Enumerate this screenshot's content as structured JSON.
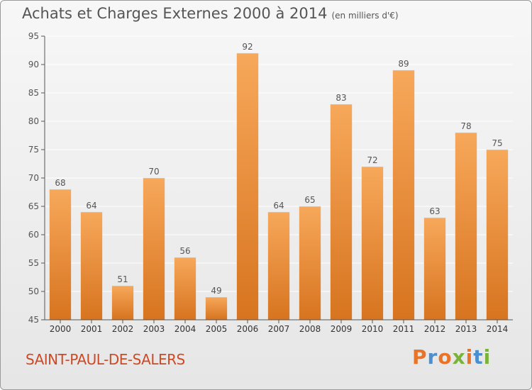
{
  "header": {
    "title": "Achats et Charges Externes 2000 à 2014",
    "subtitle": "(en milliers d'€)"
  },
  "footer": {
    "place": "SAINT-PAUL-DE-SALERS",
    "logo": "Proxiti",
    "logo_colors": [
      "#e8742a",
      "#4a8fd0",
      "#e8742a",
      "#7ab33a",
      "#e8742a",
      "#4a8fd0",
      "#7ab33a"
    ]
  },
  "colors": {
    "bar_light": "#f7a85a",
    "bar_dark": "#d7741f",
    "grid": "#ffffff",
    "axis": "#555555"
  },
  "chart_data": {
    "type": "bar",
    "title": "Achats et Charges Externes 2000 à 2014",
    "subtitle": "(en milliers d'€)",
    "categories": [
      "2000",
      "2001",
      "2002",
      "2003",
      "2004",
      "2005",
      "2006",
      "2007",
      "2008",
      "2009",
      "2010",
      "2011",
      "2012",
      "2013",
      "2014"
    ],
    "values": [
      68,
      64,
      51,
      70,
      56,
      49,
      92,
      64,
      65,
      83,
      72,
      89,
      63,
      78,
      75
    ],
    "ylim": [
      45,
      95
    ],
    "yticks": [
      45,
      50,
      55,
      60,
      65,
      70,
      75,
      80,
      85,
      90,
      95
    ],
    "grid": true,
    "xlabel": "",
    "ylabel": ""
  }
}
